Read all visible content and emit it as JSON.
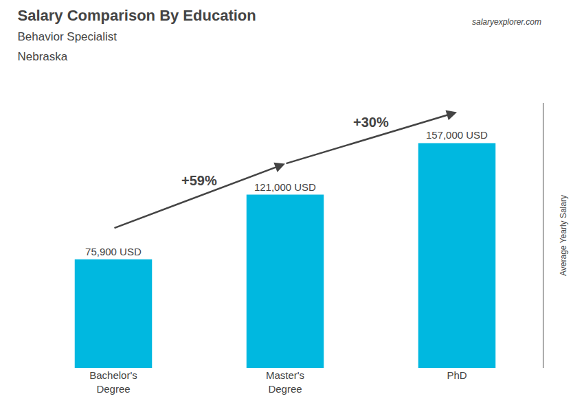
{
  "chart_data": {
    "type": "bar",
    "title": "Salary Comparison By Education",
    "subtitle": [
      "Behavior Specialist",
      "Nebraska"
    ],
    "ylabel": "Average Yearly Salary",
    "categories": [
      "Bachelor's\nDegree",
      "Master's\nDegree",
      "PhD"
    ],
    "values": [
      75900,
      121000,
      157000
    ],
    "value_labels": [
      "75,900 USD",
      "121,000 USD",
      "157,000 USD"
    ],
    "data_labels": true,
    "color": "#00b8e0",
    "ylim": [
      0,
      185000
    ],
    "tick_labels": "x",
    "grid": false,
    "annotations": [
      {
        "text": "salaryexplorer.com"
      },
      {
        "text": "+59%",
        "from": 0,
        "to": 1
      },
      {
        "text": "+30%",
        "from": 1,
        "to": 2
      }
    ]
  }
}
